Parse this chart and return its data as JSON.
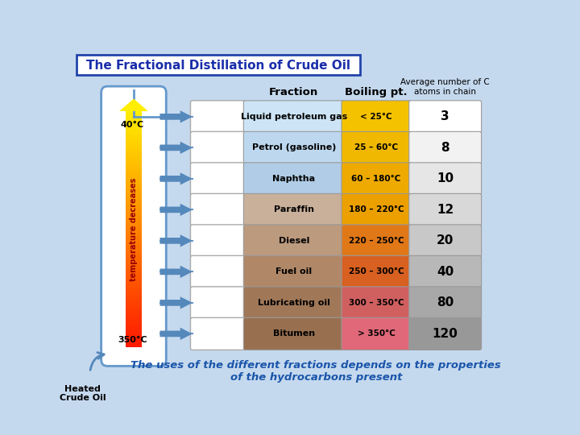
{
  "title": "The Fractional Distillation of Crude Oil",
  "col_headers": [
    "Fraction",
    "Boiling pt.",
    "Average number of C\natoms in chain"
  ],
  "rows": [
    {
      "fraction": "Liquid petroleum gas",
      "boiling": "< 25°C",
      "carbon": "3",
      "frac_color": "#cce4f5",
      "boil_color": "#f5c200",
      "carbon_color": "#ffffff"
    },
    {
      "fraction": "Petrol (gasoline)",
      "boiling": "25 – 60°C",
      "carbon": "8",
      "frac_color": "#bdd8ee",
      "boil_color": "#f0b800",
      "carbon_color": "#f2f2f2"
    },
    {
      "fraction": "Naphtha",
      "boiling": "60 – 180°C",
      "carbon": "10",
      "frac_color": "#b0cce6",
      "boil_color": "#eeaa00",
      "carbon_color": "#e6e6e6"
    },
    {
      "fraction": "Paraffin",
      "boiling": "180 – 220°C",
      "carbon": "12",
      "frac_color": "#c8b09a",
      "boil_color": "#eca000",
      "carbon_color": "#d8d8d8"
    },
    {
      "fraction": "Diesel",
      "boiling": "220 – 250°C",
      "carbon": "20",
      "frac_color": "#bc9a7e",
      "boil_color": "#e07818",
      "carbon_color": "#c8c8c8"
    },
    {
      "fraction": "Fuel oil",
      "boiling": "250 – 300°C",
      "carbon": "40",
      "frac_color": "#b08868",
      "boil_color": "#d86020",
      "carbon_color": "#b8b8b8"
    },
    {
      "fraction": "Lubricating oil",
      "boiling": "300 – 350°C",
      "carbon": "80",
      "frac_color": "#a07858",
      "boil_color": "#d06060",
      "carbon_color": "#a8a8a8"
    },
    {
      "fraction": "Bitumen",
      "boiling": "> 350°C",
      "carbon": "120",
      "frac_color": "#987050",
      "boil_color": "#e06878",
      "carbon_color": "#989898"
    }
  ],
  "bg_color": "#c5d9ee",
  "bottom_text": "The uses of the different fractions depends on the properties\nof the hydrocarbons present",
  "temp_top": "40°C",
  "temp_bottom": "350°C",
  "heated_label": "Heated\nCrude Oil",
  "arrow_blue": "#5588bb"
}
